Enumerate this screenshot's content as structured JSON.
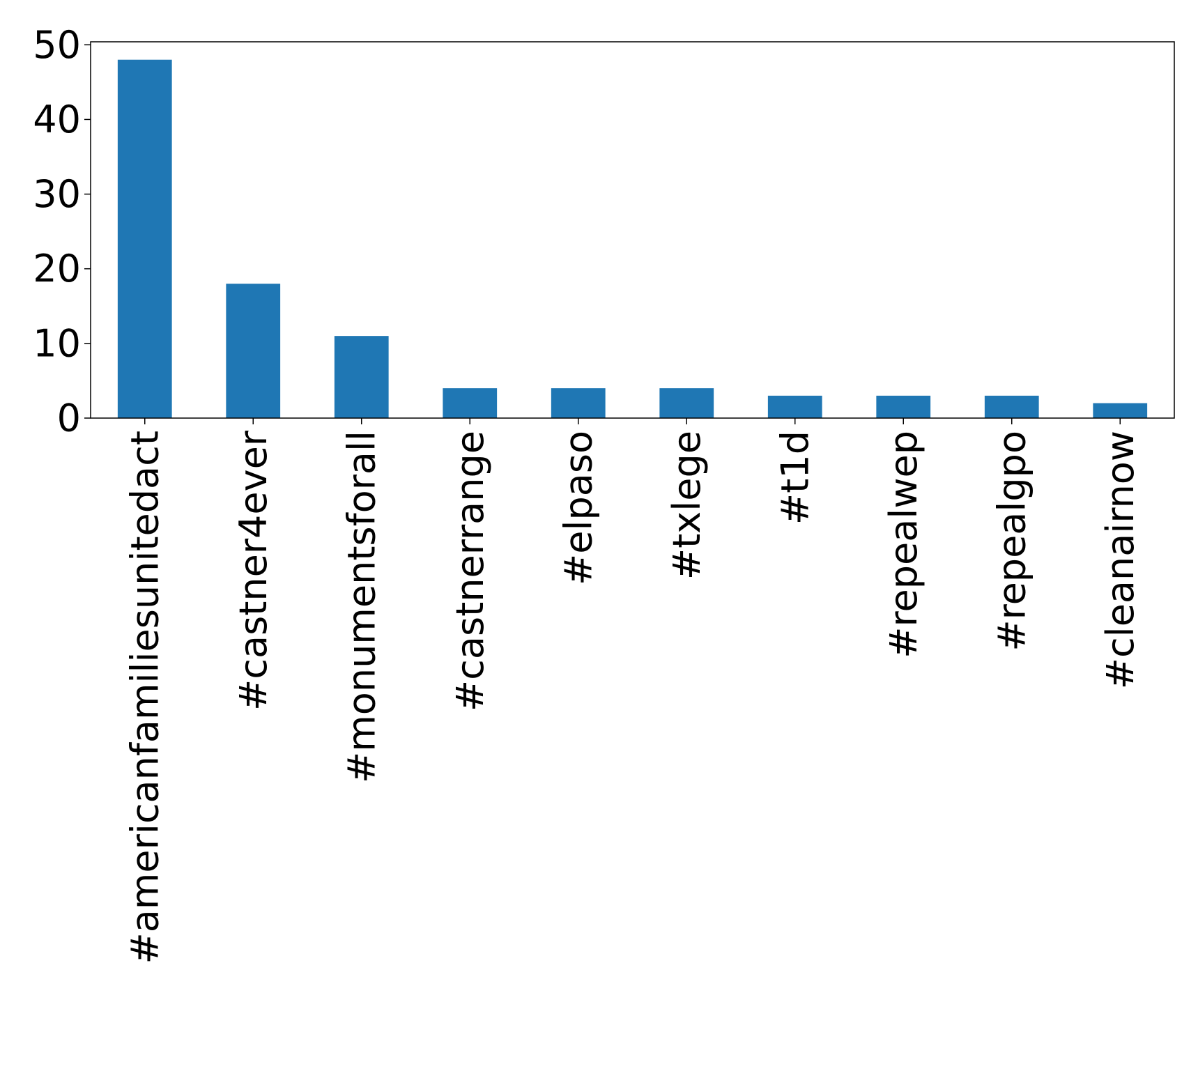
{
  "chart_data": {
    "type": "bar",
    "title": "",
    "xlabel": "",
    "ylabel": "",
    "categories": [
      "#americanfamiliesunitedact",
      "#castner4ever",
      "#monumentsforall",
      "#castnerrange",
      "#elpaso",
      "#txlege",
      "#t1d",
      "#repealwep",
      "#repealgpo",
      "#cleanairnow"
    ],
    "values": [
      48,
      18,
      11,
      4,
      4,
      4,
      3,
      3,
      3,
      2
    ],
    "ylim": [
      0,
      50.4
    ],
    "yticks": [
      0,
      10,
      20,
      30,
      40,
      50
    ],
    "grid": false,
    "legend": "none",
    "bar_color": "#1f77b4"
  }
}
